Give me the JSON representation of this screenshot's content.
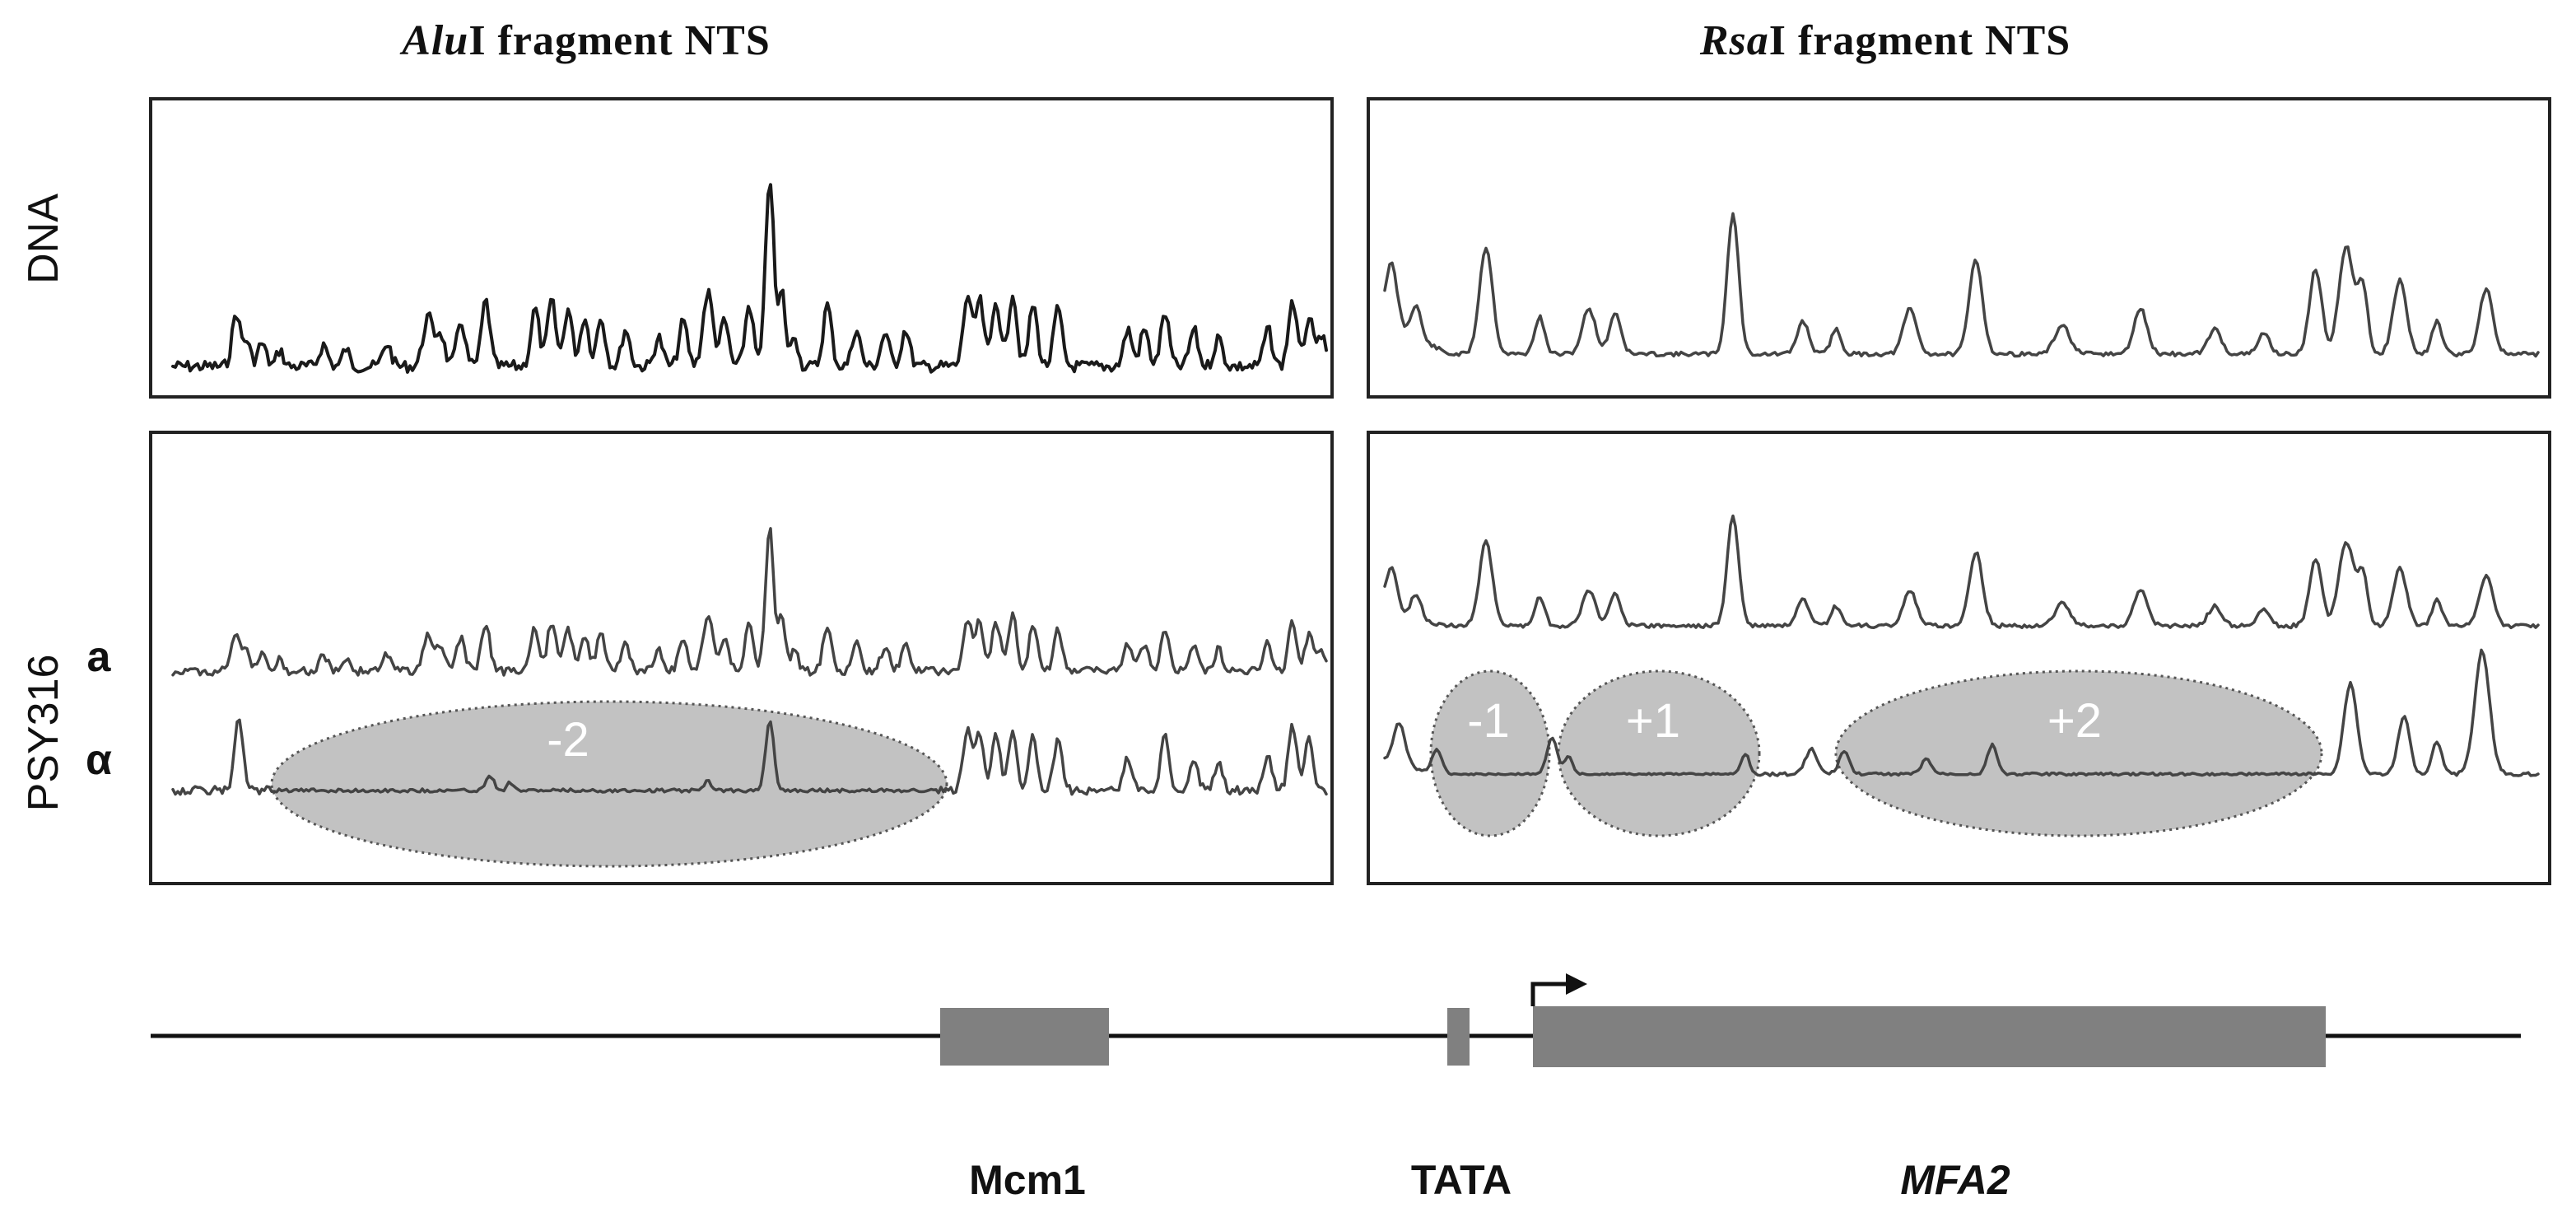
{
  "titles": {
    "left_enzyme": "Alu",
    "left_rest": "I fragment NTS",
    "right_enzyme": "Rsa",
    "right_rest": "I fragment NTS"
  },
  "row_labels": {
    "dna": "DNA",
    "strain": "PSY316",
    "mating_a": "a",
    "mating_alpha": "α"
  },
  "nucleosomes": {
    "left": [
      "-2"
    ],
    "right": [
      "-1",
      "+1",
      "+2"
    ]
  },
  "gene_map": {
    "mcm1": "Mcm1",
    "tata": "TATA",
    "gene": "MFA2"
  },
  "colors": {
    "trace_dark": "#1a1a1a",
    "trace_gray": "#444444",
    "nucleosome_fill": "#bdbdbd",
    "gene_box": "#808080",
    "panel_border": "#222222"
  }
}
